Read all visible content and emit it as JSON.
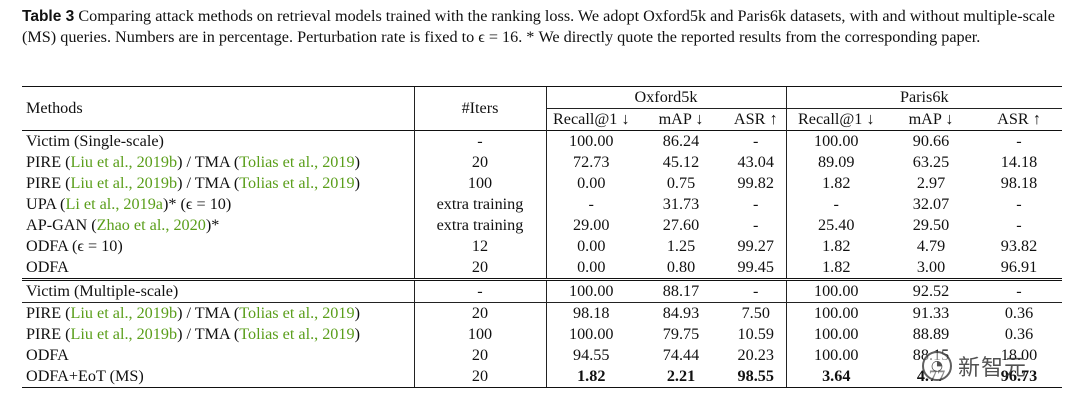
{
  "caption": {
    "label": "Table 3",
    "text": "Comparing attack methods on retrieval models trained with the ranking loss. We adopt Oxford5k and Paris6k datasets, with and without multiple-scale (MS) queries. Numbers are in percentage. Perturbation rate is fixed to ϵ = 16. * We directly quote the reported results from the corresponding paper."
  },
  "headers": {
    "methods": "Methods",
    "iters": "#Iters",
    "oxford": "Oxford5k",
    "paris": "Paris6k",
    "sub": [
      "Recall@1 ↓",
      "mAP ↓",
      "ASR ↑",
      "Recall@1 ↓",
      "mAP ↓",
      "ASR ↑"
    ]
  },
  "rows": [
    {
      "m": [
        "Victim (Single-scale)"
      ],
      "cite": [],
      "iters": "-",
      "v": [
        "100.00",
        "86.24",
        "-",
        "100.00",
        "90.66",
        "-"
      ]
    },
    {
      "m": [
        "PIRE (",
        ") / TMA (",
        ")"
      ],
      "cite": [
        "Liu et al., 2019b",
        "Tolias et al., 2019"
      ],
      "iters": "20",
      "v": [
        "72.73",
        "45.12",
        "43.04",
        "89.09",
        "63.25",
        "14.18"
      ]
    },
    {
      "m": [
        "PIRE (",
        ") / TMA (",
        ")"
      ],
      "cite": [
        "Liu et al., 2019b",
        "Tolias et al., 2019"
      ],
      "iters": "100",
      "v": [
        "0.00",
        "0.75",
        "99.82",
        "1.82",
        "2.97",
        "98.18"
      ]
    },
    {
      "m": [
        "UPA (",
        ")* (ϵ = 10)"
      ],
      "cite": [
        "Li et al., 2019a"
      ],
      "iters": "extra training",
      "v": [
        "-",
        "31.73",
        "-",
        "-",
        "32.07",
        "-"
      ]
    },
    {
      "m": [
        "AP-GAN (",
        ")*"
      ],
      "cite": [
        "Zhao et al., 2020"
      ],
      "iters": "extra training",
      "v": [
        "29.00",
        "27.60",
        "-",
        "25.40",
        "29.50",
        "-"
      ]
    },
    {
      "m": [
        "ODFA (ϵ = 10)"
      ],
      "cite": [],
      "iters": "12",
      "v": [
        "0.00",
        "1.25",
        "99.27",
        "1.82",
        "4.79",
        "93.82"
      ]
    },
    {
      "m": [
        "ODFA"
      ],
      "cite": [],
      "iters": "20",
      "v": [
        "0.00",
        "0.80",
        "99.45",
        "1.82",
        "3.00",
        "96.91"
      ]
    },
    {
      "m": [
        "Victim (Multiple-scale)"
      ],
      "cite": [],
      "iters": "-",
      "v": [
        "100.00",
        "88.17",
        "-",
        "100.00",
        "92.52",
        "-"
      ]
    },
    {
      "m": [
        "PIRE (",
        ") / TMA (",
        ")"
      ],
      "cite": [
        "Liu et al., 2019b",
        "Tolias et al., 2019"
      ],
      "iters": "20",
      "v": [
        "98.18",
        "84.93",
        "7.50",
        "100.00",
        "91.33",
        "0.36"
      ]
    },
    {
      "m": [
        "PIRE (",
        ") / TMA (",
        ")"
      ],
      "cite": [
        "Liu et al., 2019b",
        "Tolias et al., 2019"
      ],
      "iters": "100",
      "v": [
        "100.00",
        "79.75",
        "10.59",
        "100.00",
        "88.89",
        "0.36"
      ]
    },
    {
      "m": [
        "ODFA"
      ],
      "cite": [],
      "iters": "20",
      "v": [
        "94.55",
        "74.44",
        "20.23",
        "100.00",
        "88.15",
        "18.00"
      ]
    },
    {
      "m": [
        "ODFA+EoT (MS)"
      ],
      "cite": [],
      "iters": "20",
      "v": [
        "1.82",
        "2.21",
        "98.55",
        "3.64",
        "4.77",
        "96.73"
      ],
      "bold": true
    }
  ],
  "watermark": {
    "icon": "wechat-icon",
    "text": "新智元"
  }
}
